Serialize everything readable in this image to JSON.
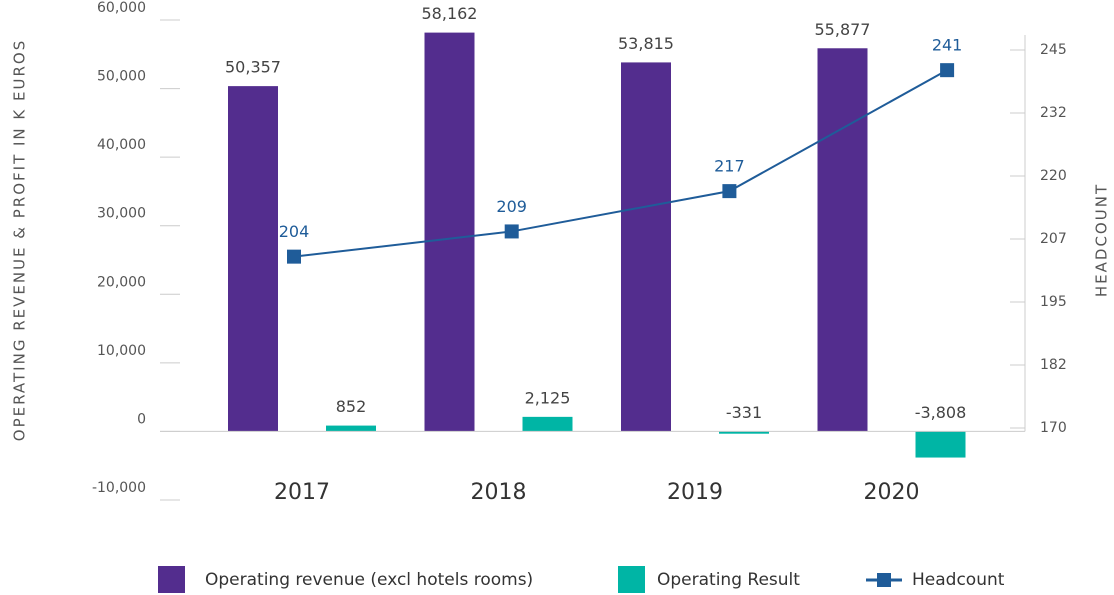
{
  "chart_data": {
    "type": "bar_line",
    "y_label": "OPERATING REVENUE & PROFIT IN K EUROS",
    "y2_label": "HEADCOUNT",
    "categories": [
      "2017",
      "2018",
      "2019",
      "2020"
    ],
    "series": [
      {
        "name": "Operating revenue (excl hotels rooms)",
        "color": "#532d8e",
        "type": "bar",
        "values": [
          50357,
          58162,
          53815,
          55877
        ],
        "value_labels": [
          "50,357",
          "58,162",
          "53,815",
          "55,877"
        ]
      },
      {
        "name": "Operating Result",
        "color": "#00b5a5",
        "type": "bar",
        "values": [
          852,
          2125,
          -331,
          -3808
        ],
        "value_labels": [
          "852",
          "2,125",
          "-331",
          "-3,808"
        ]
      },
      {
        "name": "Headcount",
        "color": "#1f5c99",
        "type": "line",
        "axis": "y2",
        "values": [
          204,
          209,
          217,
          241
        ]
      }
    ],
    "ylim": [
      -10000,
      60000
    ],
    "yticks": [
      {
        "value": -10000,
        "label": "-10,000"
      },
      0,
      {
        "value": 10000,
        "label": "10,000"
      },
      {
        "value": 20000,
        "label": "20,000"
      },
      {
        "value": 30000,
        "label": "30,000"
      },
      {
        "value": 40000,
        "label": "40,000"
      },
      {
        "value": 50000,
        "label": "50,000"
      },
      {
        "value": 60000,
        "label": "60,000"
      }
    ],
    "y2lim": [
      170,
      245
    ],
    "y2ticks": [
      170,
      {
        "value": 182.5,
        "label": "182"
      },
      195,
      {
        "value": 207.5,
        "label": "207"
      },
      220,
      {
        "value": 232.5,
        "label": "232"
      },
      245
    ]
  }
}
